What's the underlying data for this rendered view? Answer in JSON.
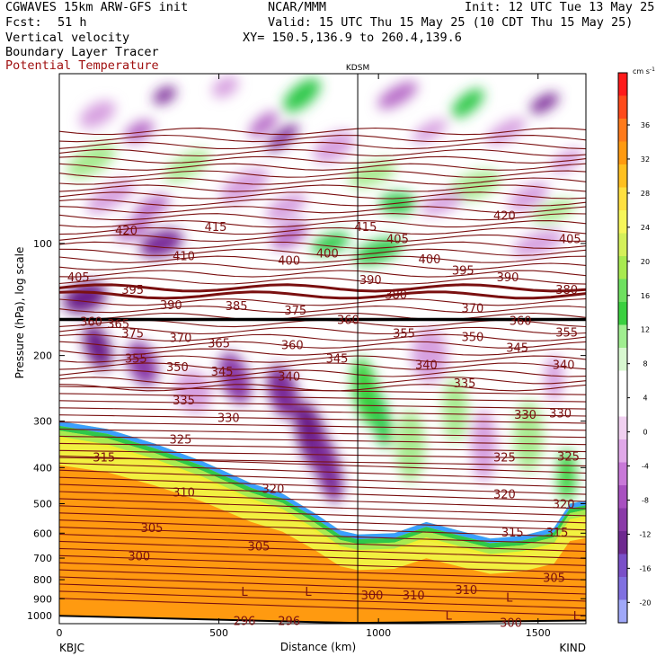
{
  "header": {
    "model": "CGWAVES 15km ARW-GFS init",
    "org": "NCAR/MMM",
    "init": "Init: 12 UTC Tue 13 May 25",
    "fcst_label": "Fcst:",
    "fcst_value": "51 h",
    "valid": "Valid: 15 UTC Thu 15 May 25 (10 CDT Thu 15 May 25)",
    "field1": "Vertical velocity",
    "field2": "Boundary Layer Tracer",
    "field3": "Potential Temperature",
    "xy": "XY= 150.5,136.9 to 260.4,139.6"
  },
  "colors": {
    "theta_contour": "#7a1010",
    "field3_text": "#a01010"
  },
  "chart_data": {
    "type": "heatmap",
    "title": "",
    "ylabel": "Pressure (hPa), log scale",
    "xlabel": "Distance (km)",
    "xlim": [
      0,
      1650
    ],
    "ylim": [
      1050,
      35
    ],
    "y_scale": "log",
    "x_ticks": [
      {
        "value": 0,
        "label": "0"
      },
      {
        "value": 500,
        "label": "500"
      },
      {
        "value": 1000,
        "label": "1000"
      },
      {
        "value": 1500,
        "label": "1500"
      }
    ],
    "y_ticks": [
      {
        "value": 100,
        "label": "100"
      },
      {
        "value": 200,
        "label": "200"
      },
      {
        "value": 300,
        "label": "300"
      },
      {
        "value": 400,
        "label": "400"
      },
      {
        "value": 500,
        "label": "500"
      },
      {
        "value": 600,
        "label": "600"
      },
      {
        "value": 700,
        "label": "700"
      },
      {
        "value": 800,
        "label": "800"
      },
      {
        "value": 900,
        "label": "900"
      },
      {
        "value": 1000,
        "label": "1000"
      }
    ],
    "endpoints": {
      "left": "KBJC",
      "right": "KIND"
    },
    "station_marker": {
      "name": "KDSM",
      "x": 935
    },
    "colorbar": {
      "unit": "cm s",
      "unit_exp": "-1",
      "label_values": [
        36,
        32,
        28,
        24,
        20,
        16,
        12,
        8,
        4,
        0,
        -4,
        -8,
        -12,
        -16,
        -20
      ],
      "colors": [
        "#ff1a1a",
        "#ff4a1a",
        "#ff7a1a",
        "#ff9a10",
        "#ffc020",
        "#ffe040",
        "#f6f65a",
        "#d4f05a",
        "#a8ea50",
        "#6ee060",
        "#3ad040",
        "#a0ee90",
        "#d8f8d0",
        "#ffffff",
        "#ffffff",
        "#f0d0f0",
        "#e0a8e8",
        "#c878d8",
        "#a850c0",
        "#8a3aa8",
        "#6e2a90",
        "#7a50c8",
        "#8070e0",
        "#a0a8f8"
      ]
    },
    "theta_labels": [
      {
        "x": 210,
        "p": 92,
        "v": "420"
      },
      {
        "x": 490,
        "p": 90,
        "v": "415"
      },
      {
        "x": 960,
        "p": 90,
        "v": "415"
      },
      {
        "x": 1395,
        "p": 84,
        "v": "420"
      },
      {
        "x": 390,
        "p": 108,
        "v": "410"
      },
      {
        "x": 1060,
        "p": 97,
        "v": "405"
      },
      {
        "x": 1600,
        "p": 97,
        "v": "405"
      },
      {
        "x": 60,
        "p": 123,
        "v": "405"
      },
      {
        "x": 720,
        "p": 111,
        "v": "400"
      },
      {
        "x": 840,
        "p": 106,
        "v": "400"
      },
      {
        "x": 1160,
        "p": 110,
        "v": "400"
      },
      {
        "x": 230,
        "p": 133,
        "v": "395"
      },
      {
        "x": 1265,
        "p": 118,
        "v": "395"
      },
      {
        "x": 1405,
        "p": 123,
        "v": "390"
      },
      {
        "x": 975,
        "p": 125,
        "v": "390"
      },
      {
        "x": 350,
        "p": 146,
        "v": "390"
      },
      {
        "x": 555,
        "p": 147,
        "v": "385"
      },
      {
        "x": 1055,
        "p": 137,
        "v": "380"
      },
      {
        "x": 1590,
        "p": 133,
        "v": "380"
      },
      {
        "x": 740,
        "p": 151,
        "v": "375"
      },
      {
        "x": 1295,
        "p": 149,
        "v": "370"
      },
      {
        "x": 100,
        "p": 162,
        "v": "360"
      },
      {
        "x": 905,
        "p": 160,
        "v": "360"
      },
      {
        "x": 1445,
        "p": 161,
        "v": "360"
      },
      {
        "x": 185,
        "p": 164,
        "v": "365"
      },
      {
        "x": 230,
        "p": 174,
        "v": "375"
      },
      {
        "x": 380,
        "p": 179,
        "v": "370"
      },
      {
        "x": 500,
        "p": 185,
        "v": "365"
      },
      {
        "x": 1080,
        "p": 174,
        "v": "355"
      },
      {
        "x": 1295,
        "p": 178,
        "v": "350"
      },
      {
        "x": 1590,
        "p": 173,
        "v": "355"
      },
      {
        "x": 1435,
        "p": 190,
        "v": "345"
      },
      {
        "x": 730,
        "p": 187,
        "v": "360"
      },
      {
        "x": 240,
        "p": 203,
        "v": "355"
      },
      {
        "x": 370,
        "p": 214,
        "v": "350"
      },
      {
        "x": 510,
        "p": 220,
        "v": "345"
      },
      {
        "x": 870,
        "p": 203,
        "v": "345"
      },
      {
        "x": 720,
        "p": 227,
        "v": "340"
      },
      {
        "x": 1150,
        "p": 211,
        "v": "340"
      },
      {
        "x": 1580,
        "p": 211,
        "v": "340"
      },
      {
        "x": 1270,
        "p": 237,
        "v": "335"
      },
      {
        "x": 390,
        "p": 263,
        "v": "335"
      },
      {
        "x": 530,
        "p": 293,
        "v": "330"
      },
      {
        "x": 1460,
        "p": 288,
        "v": "330"
      },
      {
        "x": 1570,
        "p": 285,
        "v": "330"
      },
      {
        "x": 380,
        "p": 335,
        "v": "325"
      },
      {
        "x": 1395,
        "p": 375,
        "v": "325"
      },
      {
        "x": 1595,
        "p": 372,
        "v": "325"
      },
      {
        "x": 140,
        "p": 375,
        "v": "315"
      },
      {
        "x": 670,
        "p": 455,
        "v": "320"
      },
      {
        "x": 1395,
        "p": 470,
        "v": "320"
      },
      {
        "x": 1580,
        "p": 500,
        "v": "320"
      },
      {
        "x": 390,
        "p": 465,
        "v": "310"
      },
      {
        "x": 1420,
        "p": 595,
        "v": "315"
      },
      {
        "x": 1560,
        "p": 595,
        "v": "315"
      },
      {
        "x": 290,
        "p": 580,
        "v": "305"
      },
      {
        "x": 625,
        "p": 650,
        "v": "305"
      },
      {
        "x": 1550,
        "p": 788,
        "v": "305"
      },
      {
        "x": 250,
        "p": 690,
        "v": "300"
      },
      {
        "x": 980,
        "p": 878,
        "v": "300"
      },
      {
        "x": 1110,
        "p": 880,
        "v": "310"
      },
      {
        "x": 1275,
        "p": 850,
        "v": "310"
      },
      {
        "x": 580,
        "p": 1030,
        "v": "296"
      },
      {
        "x": 720,
        "p": 1030,
        "v": "296"
      },
      {
        "x": 1415,
        "p": 1040,
        "v": "300"
      }
    ],
    "tracer_labels": [
      {
        "x": 1220,
        "p": 995,
        "v": "L"
      },
      {
        "x": 1620,
        "p": 1000,
        "v": "L"
      }
    ],
    "low_labels": [
      {
        "x": 580,
        "p": 860,
        "v": "L"
      },
      {
        "x": 780,
        "p": 860,
        "v": "L"
      },
      {
        "x": 1410,
        "p": 890,
        "v": "L"
      }
    ],
    "marker_text": {
      "x": 905,
      "p": 160,
      "v": "360"
    }
  }
}
